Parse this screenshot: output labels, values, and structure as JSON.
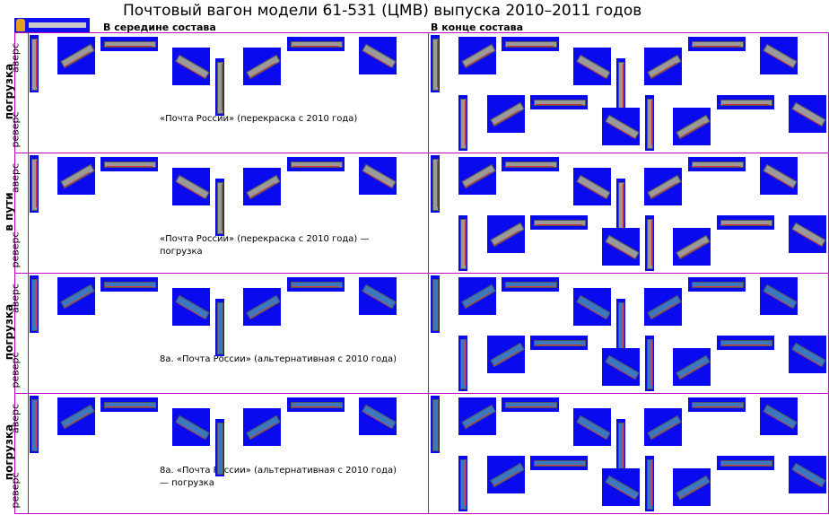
{
  "title": "Почтовый вагон модели 61-531 (ЦМВ) выпуска 2010–2011 годов",
  "columns": {
    "middle": "В середине состава",
    "end": "В конце состава"
  },
  "rows": [
    {
      "group_label": "погрузка",
      "sub_labels": [
        "аверс",
        "реверс"
      ],
      "caption": "«Почта России» (перекраска с 2010 года)",
      "livery": "grey"
    },
    {
      "group_label": "в пути",
      "sub_labels": [
        "аверс",
        "реверс"
      ],
      "caption": "«Почта России» (перекраска с 2010 года) — погрузка",
      "livery": "grey"
    },
    {
      "group_label": "погрузка",
      "sub_labels": [
        "аверс",
        "реверс"
      ],
      "caption": "8а. «Почта России» (альтернативная с 2010 года)",
      "livery": "blue"
    },
    {
      "group_label": "погрузка",
      "sub_labels": [
        "аверс",
        "реверс"
      ],
      "caption": "8а. «Почта России» (альтернативная с 2010 года) — погрузка",
      "livery": "blue"
    }
  ],
  "colors": {
    "sprite_background": "#0a0aee",
    "grid_lines": "#c000c0",
    "grey_car": "#9a9a9a",
    "blue_car": "#3a78c0"
  }
}
